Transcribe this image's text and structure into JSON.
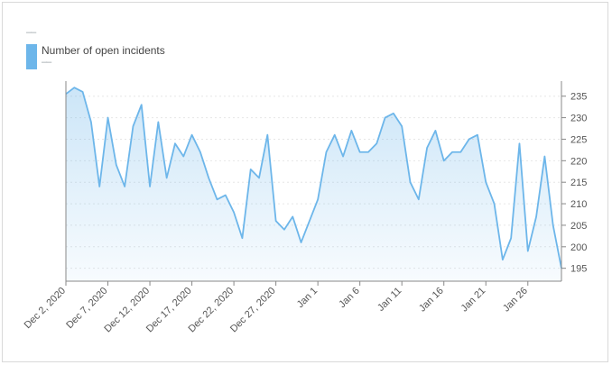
{
  "header": {
    "dash_top": "––"
  },
  "legend": {
    "label": "Number of open incidents",
    "sub": "––",
    "color": "#6db6ea"
  },
  "chart_data": {
    "type": "area",
    "series": [
      {
        "name": "Number of open incidents",
        "values": [
          235.5,
          237,
          236,
          229,
          214,
          230,
          219,
          214,
          228,
          233,
          214,
          229,
          216,
          224,
          221,
          226,
          222,
          216,
          211,
          212,
          208,
          202,
          218,
          216,
          226,
          206,
          204,
          207,
          201,
          206,
          211,
          222,
          226,
          221,
          227,
          222,
          222,
          224,
          230,
          231,
          228,
          215,
          211,
          223,
          227,
          220,
          222,
          222,
          225,
          226,
          215,
          210,
          197,
          202,
          224,
          199,
          207,
          221,
          205,
          195
        ]
      }
    ],
    "x_tick_labels": [
      "Dec 2, 2020",
      "Dec 7, 2020",
      "Dec 12, 2020",
      "Dec 17, 2020",
      "Dec 22, 2020",
      "Dec 27, 2020",
      "Jan 1",
      "Jan 6",
      "Jan 11",
      "Jan 16",
      "Jan 21",
      "Jan 26"
    ],
    "y_ticks": [
      195,
      200,
      205,
      210,
      215,
      220,
      225,
      230,
      235
    ],
    "ylim": [
      192,
      238.5
    ],
    "grid": true,
    "legend_position": "top-left",
    "line_color": "#6db6ea"
  }
}
